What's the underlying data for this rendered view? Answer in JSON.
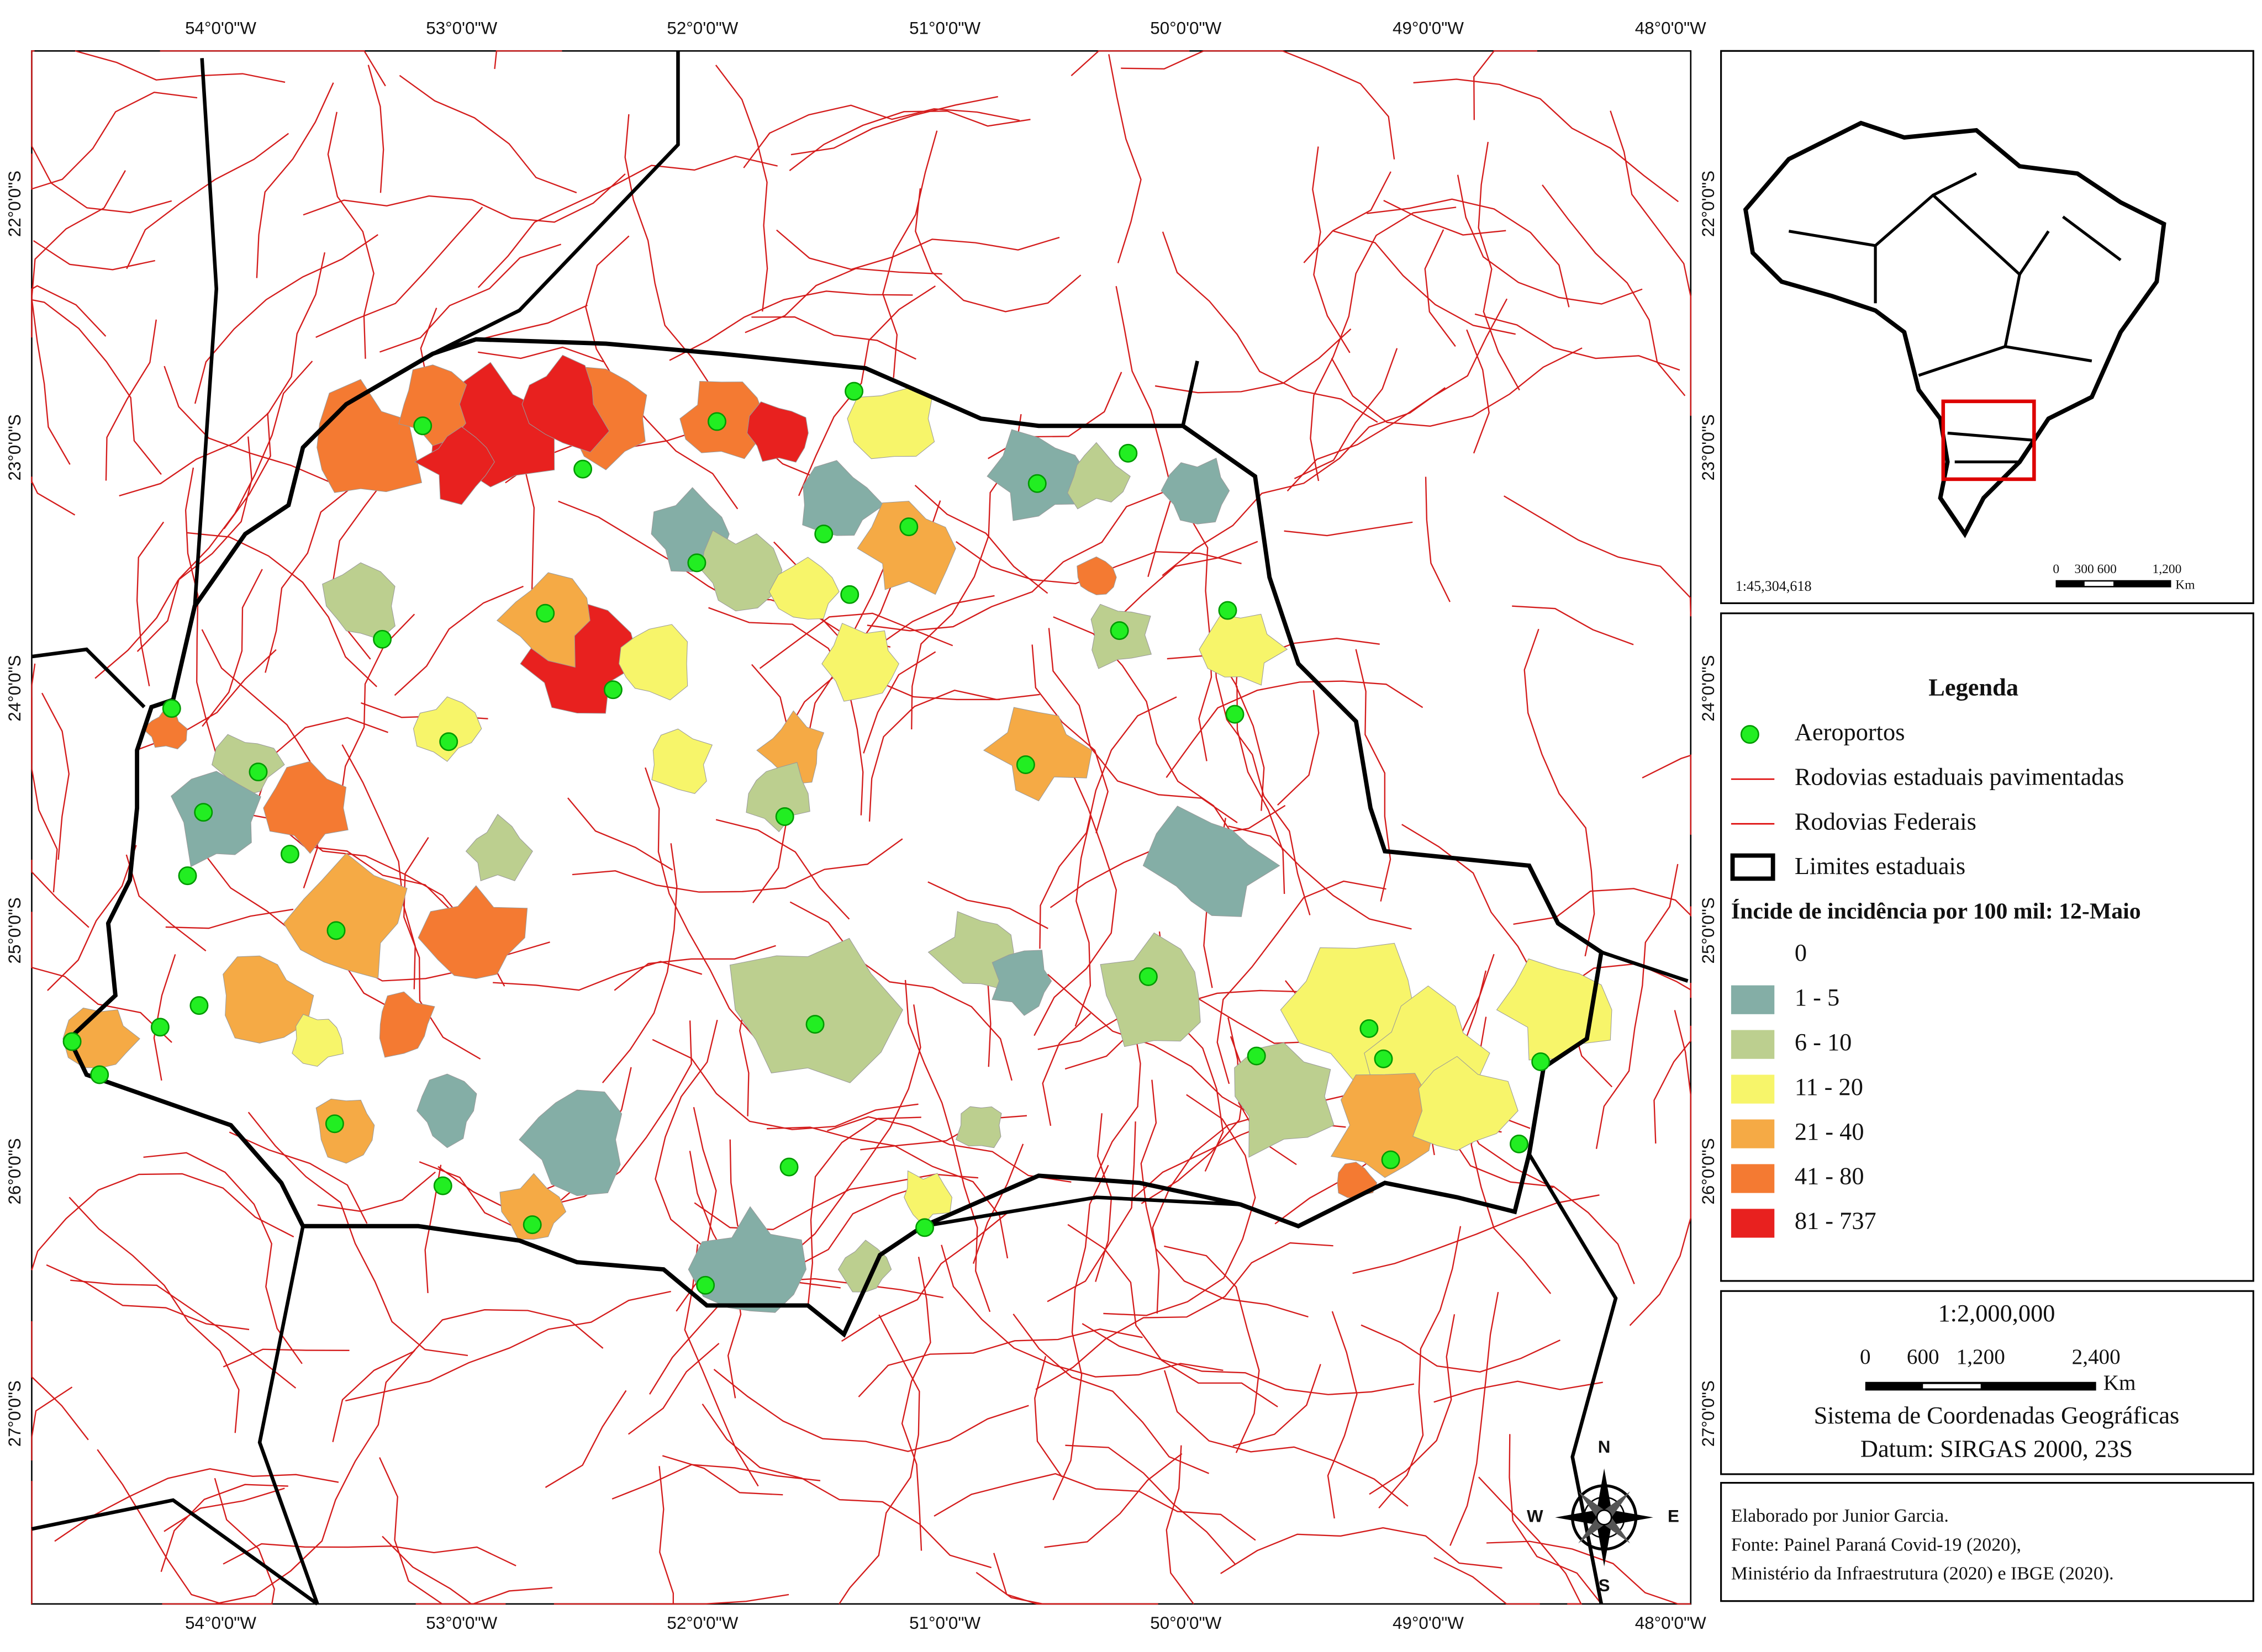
{
  "map": {
    "x_labels": [
      "54°0'0\"W",
      "53°0'0\"W",
      "52°0'0\"W",
      "51°0'0\"W",
      "50°0'0\"W",
      "49°0'0\"W",
      "48°0'0\"W"
    ],
    "y_labels": [
      "22°0'0\"S",
      "23°0'0\"S",
      "24°0'0\"S",
      "25°0'0\"S",
      "26°0'0\"S",
      "27°0'0\"S"
    ],
    "compass": {
      "n": "N",
      "e": "E",
      "s": "S",
      "w": "W"
    }
  },
  "inset": {
    "scale": "1:45,304,618",
    "scalebar": [
      "0",
      "300 600",
      "1,200"
    ],
    "unit": "Km"
  },
  "legend": {
    "title": "Legenda",
    "items": [
      "Aeroportos",
      "Rodovias estaduais pavimentadas",
      "Rodovias Federais",
      "Limites estaduais"
    ],
    "classes_title": "Íncide de incidência por 100 mil: 12-Maio",
    "classes": [
      {
        "label": "0",
        "color": "#ffffff"
      },
      {
        "label": "1 - 5",
        "color": "#84aea6"
      },
      {
        "label": "6 - 10",
        "color": "#bccf8f"
      },
      {
        "label": "11 - 20",
        "color": "#f7f56a"
      },
      {
        "label": "21 - 40",
        "color": "#f5aa45"
      },
      {
        "label": "41 - 80",
        "color": "#f47a32"
      },
      {
        "label": "81 - 737",
        "color": "#e8211f"
      }
    ]
  },
  "scale": {
    "ratio": "1:2,000,000",
    "bar": [
      "0",
      "600",
      "1,200",
      "2,400"
    ],
    "unit": "Km",
    "crs": "Sistema de Coordenadas Geográficas",
    "datum": "Datum: SIRGAS 2000, 23S"
  },
  "credits": [
    "Elaborado por Junior Garcia.",
    "Fonte: Painel Paraná Covid-19 (2020),",
    "Ministério da Infraestrutura (2020) e IBGE (2020)."
  ]
}
